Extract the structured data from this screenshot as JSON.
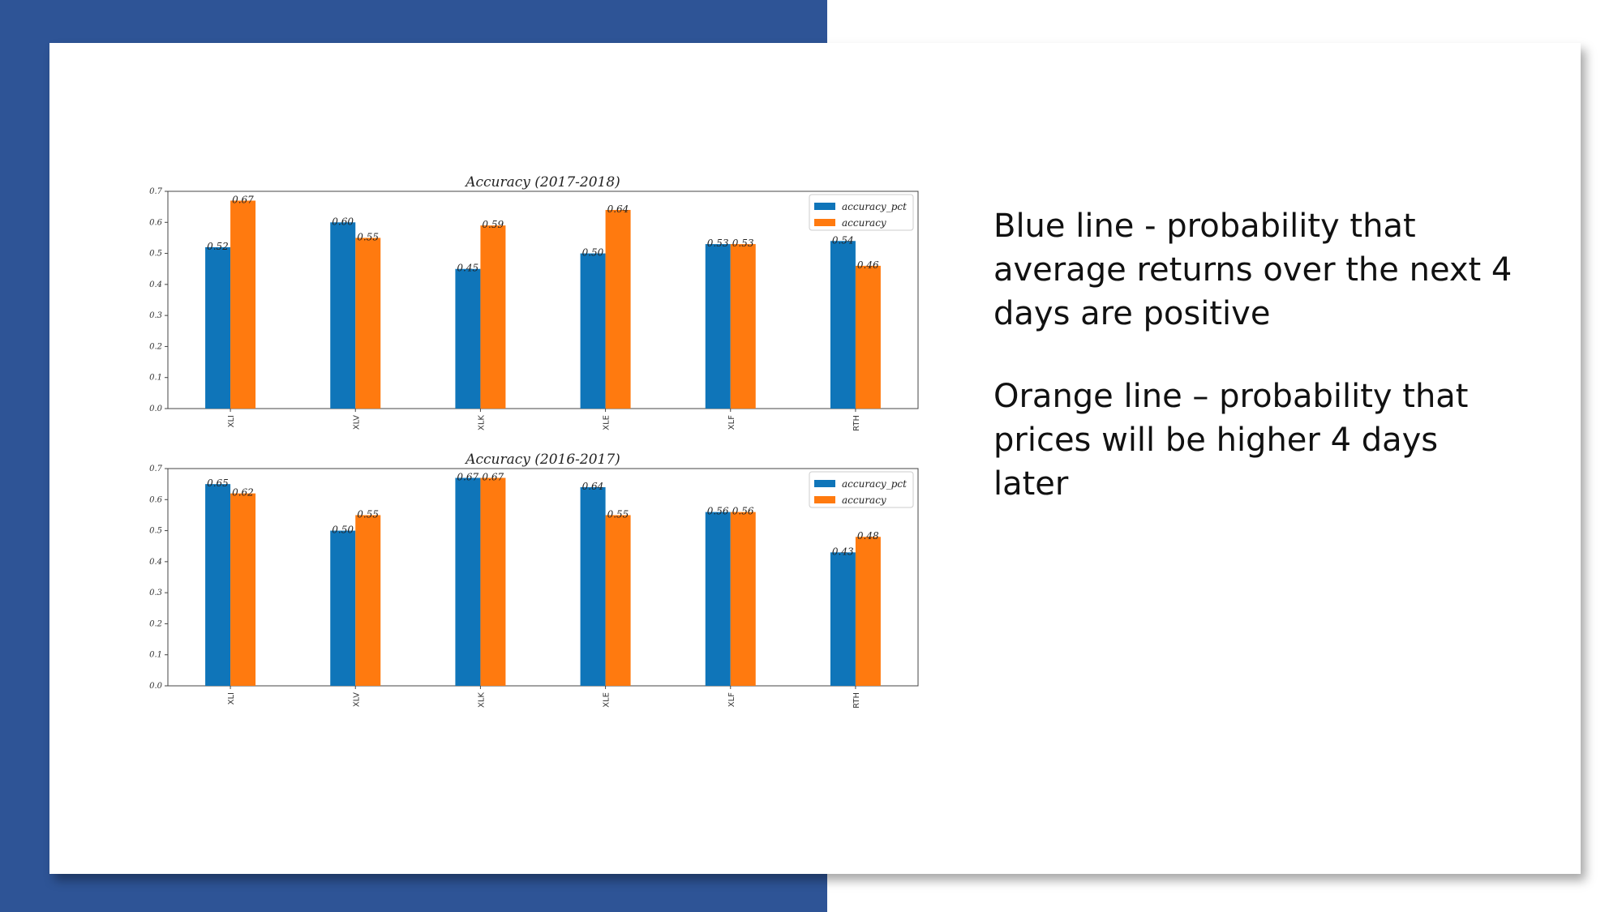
{
  "colors": {
    "band": "#2e5496",
    "accuracy_pct": "#0f75b9",
    "accuracy": "#ff7a0f"
  },
  "text": {
    "blue_note": "Blue line - probability that average returns over the next 4 days are positive",
    "orange_note": "Orange line – probability that prices will be higher 4 days later"
  },
  "chart_data": [
    {
      "type": "bar",
      "title": "Accuracy (2017-2018)",
      "xlabel": "",
      "ylabel": "",
      "ylim": [
        0,
        0.7
      ],
      "yticks": [
        "0.0",
        "0.1",
        "0.2",
        "0.3",
        "0.4",
        "0.5",
        "0.6",
        "0.7"
      ],
      "categories": [
        "XLI",
        "XLV",
        "XLK",
        "XLE",
        "XLF",
        "RTH"
      ],
      "legend_position": "top-right",
      "grid": false,
      "series": [
        {
          "name": "accuracy_pct",
          "values": [
            0.52,
            0.6,
            0.45,
            0.5,
            0.53,
            0.54
          ],
          "labels": [
            "0.52",
            "0.60",
            "0.45",
            "0.50",
            "0.53",
            "0.54"
          ]
        },
        {
          "name": "accuracy",
          "values": [
            0.67,
            0.55,
            0.59,
            0.64,
            0.53,
            0.46
          ],
          "labels": [
            "0.67",
            "0.55",
            "0.59",
            "0.64",
            "0.53",
            "0.46"
          ]
        }
      ]
    },
    {
      "type": "bar",
      "title": "Accuracy (2016-2017)",
      "xlabel": "",
      "ylabel": "",
      "ylim": [
        0,
        0.7
      ],
      "yticks": [
        "0.0",
        "0.1",
        "0.2",
        "0.3",
        "0.4",
        "0.5",
        "0.6",
        "0.7"
      ],
      "categories": [
        "XLI",
        "XLV",
        "XLK",
        "XLE",
        "XLF",
        "RTH"
      ],
      "legend_position": "top-right",
      "grid": false,
      "series": [
        {
          "name": "accuracy_pct",
          "values": [
            0.65,
            0.5,
            0.67,
            0.64,
            0.56,
            0.43
          ],
          "labels": [
            "0.65",
            "0.50",
            "0.67",
            "0.64",
            "0.56",
            "0.43"
          ]
        },
        {
          "name": "accuracy",
          "values": [
            0.62,
            0.55,
            0.67,
            0.55,
            0.56,
            0.48
          ],
          "labels": [
            "0.62",
            "0.55",
            "0.67",
            "0.55",
            "0.56",
            "0.48"
          ]
        }
      ]
    }
  ]
}
